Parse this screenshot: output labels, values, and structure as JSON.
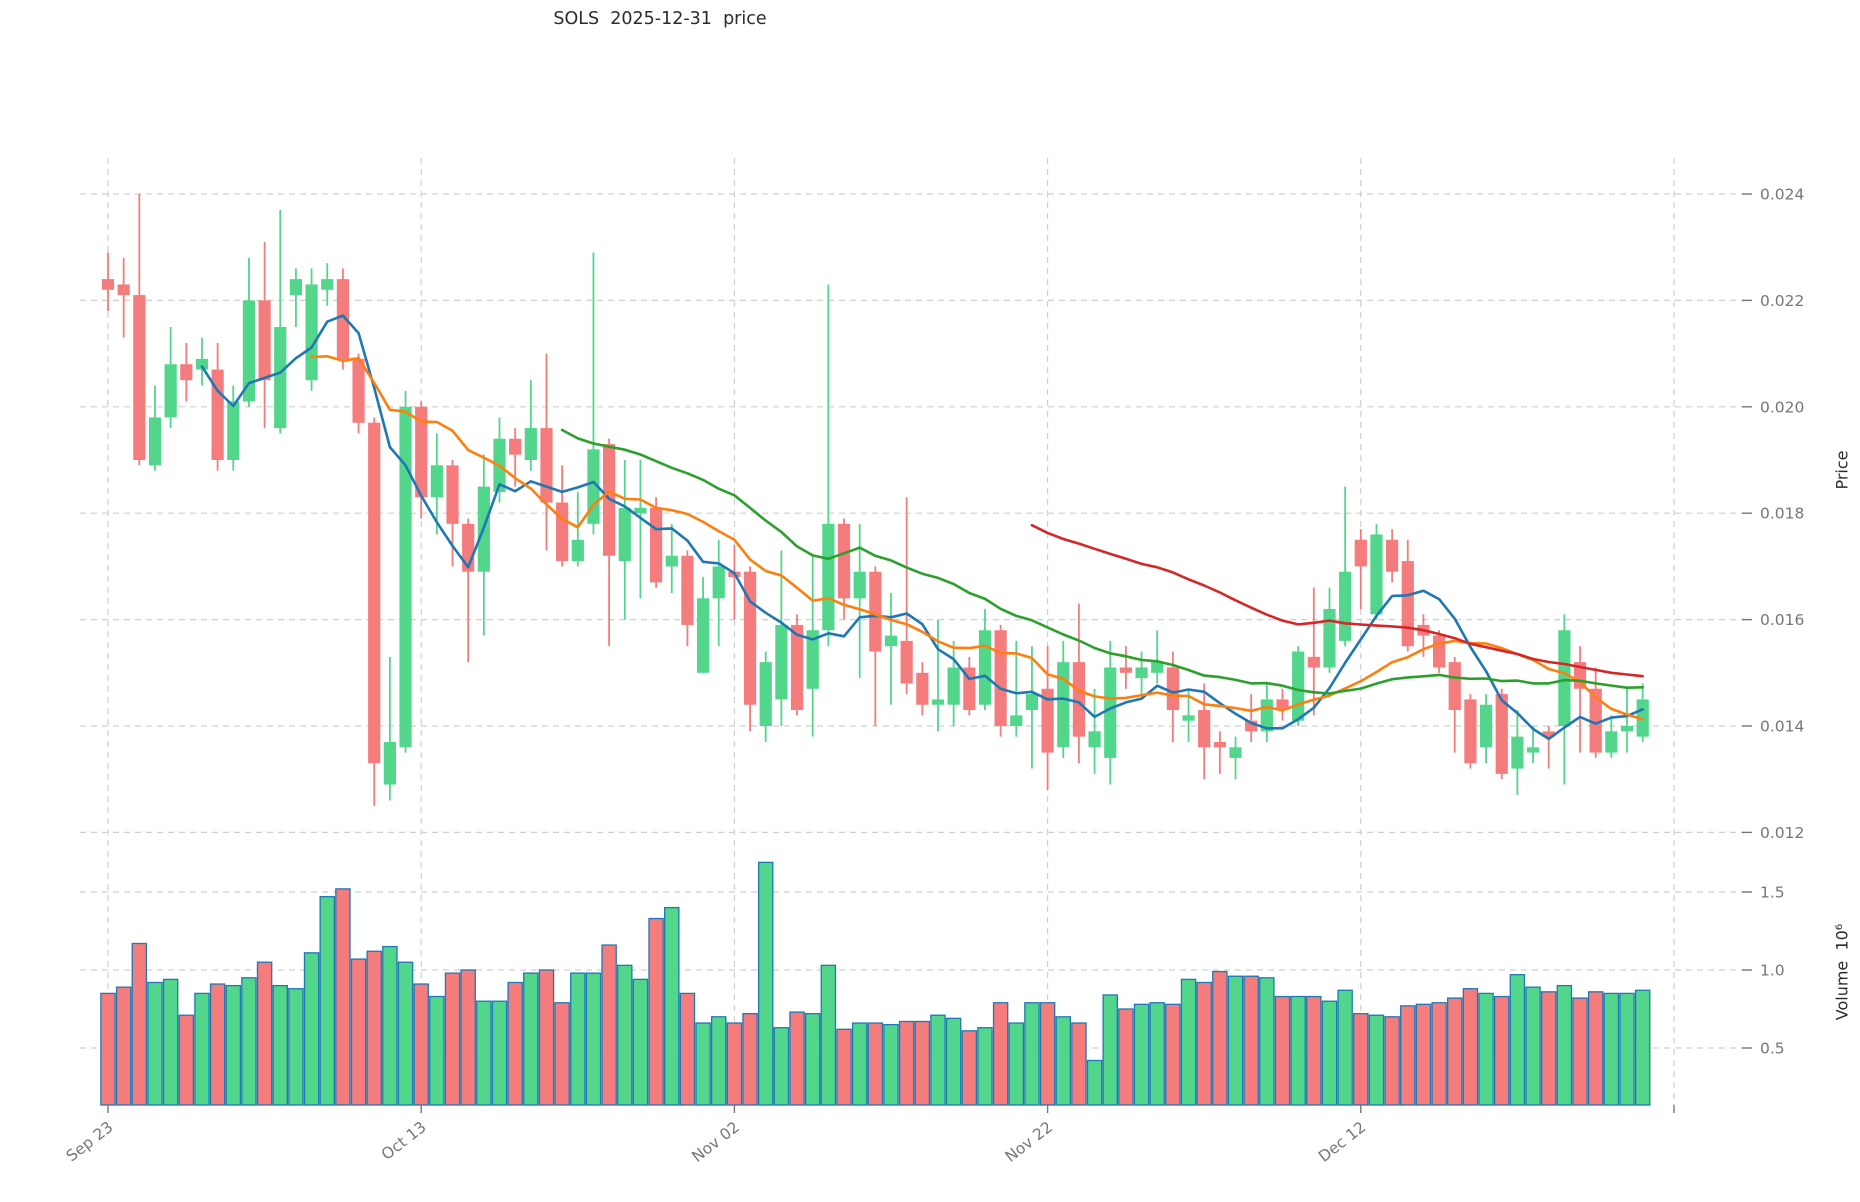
{
  "chart_data": {
    "type": "candlestick",
    "title": "SOLS  2025-12-31  price",
    "ylabel": "Price",
    "ylabel_volume": "Volume  10⁶",
    "legend_position": "none",
    "grid": "dashed",
    "price_ticks": [
      {
        "value": 0.012,
        "label": "0.012"
      },
      {
        "value": 0.014,
        "label": "0.014"
      },
      {
        "value": 0.016,
        "label": "0.016"
      },
      {
        "value": 0.018,
        "label": "0.018"
      },
      {
        "value": 0.02,
        "label": "0.020"
      },
      {
        "value": 0.022,
        "label": "0.022"
      },
      {
        "value": 0.024,
        "label": "0.024"
      }
    ],
    "volume_ticks": [
      {
        "value": 0.5,
        "label": "0.5"
      },
      {
        "value": 1.0,
        "label": "1.0"
      },
      {
        "value": 1.5,
        "label": "1.5"
      }
    ],
    "volume_unit": 1000000,
    "price_ylim": [
      0.0118,
      0.0247
    ],
    "volume_ylim": [
      0.13,
      1.78
    ],
    "x_gridline_indices": [
      0,
      20,
      40,
      60,
      80,
      100
    ],
    "x_ticks": [
      {
        "index": 0,
        "label": "Sep 23"
      },
      {
        "index": 20,
        "label": "Oct 13"
      },
      {
        "index": 40,
        "label": "Nov 02"
      },
      {
        "index": 60,
        "label": "Nov 22"
      },
      {
        "index": 80,
        "label": "Dec 12"
      }
    ],
    "moving_averages": [
      {
        "name": "mav-7",
        "window": 7,
        "color": "#1f77b4"
      },
      {
        "name": "mav-14",
        "window": 14,
        "color": "#ff7f0e"
      },
      {
        "name": "mav-30",
        "window": 30,
        "color": "#2ca02c"
      },
      {
        "name": "mav-60",
        "window": 60,
        "color": "#d62728"
      }
    ],
    "colors": {
      "up": "#52d68b",
      "down": "#f47c7c",
      "volume_edge": "#1f77b4",
      "grid": "#cfcfcf",
      "tick_text": "#767676",
      "title_text": "#2b2b2b"
    },
    "columns": [
      "date",
      "open",
      "high",
      "low",
      "close",
      "volume_millions"
    ],
    "candles": [
      [
        "2025-09-23",
        0.0224,
        0.0229,
        0.0218,
        0.0222,
        0.85
      ],
      [
        "2025-09-24",
        0.0223,
        0.0228,
        0.0213,
        0.0221,
        0.89
      ],
      [
        "2025-09-25",
        0.0221,
        0.024,
        0.0189,
        0.019,
        1.17
      ],
      [
        "2025-09-26",
        0.0189,
        0.0204,
        0.0188,
        0.0198,
        0.92
      ],
      [
        "2025-09-27",
        0.0198,
        0.0215,
        0.0196,
        0.0208,
        0.94
      ],
      [
        "2025-09-28",
        0.0208,
        0.0212,
        0.0201,
        0.0205,
        0.71
      ],
      [
        "2025-09-29",
        0.0207,
        0.0213,
        0.0204,
        0.0209,
        0.85
      ],
      [
        "2025-09-30",
        0.0207,
        0.0212,
        0.0188,
        0.019,
        0.91
      ],
      [
        "2025-10-01",
        0.019,
        0.0204,
        0.0188,
        0.0201,
        0.9
      ],
      [
        "2025-10-02",
        0.0201,
        0.0228,
        0.02,
        0.022,
        0.95
      ],
      [
        "2025-10-03",
        0.022,
        0.0231,
        0.0196,
        0.0205,
        1.05
      ],
      [
        "2025-10-04",
        0.0196,
        0.0237,
        0.0195,
        0.0215,
        0.9
      ],
      [
        "2025-10-05",
        0.0221,
        0.0226,
        0.0215,
        0.0224,
        0.88
      ],
      [
        "2025-10-06",
        0.0205,
        0.0226,
        0.0203,
        0.0223,
        1.11
      ],
      [
        "2025-10-07",
        0.0222,
        0.0227,
        0.0219,
        0.0224,
        1.47
      ],
      [
        "2025-10-08",
        0.0224,
        0.0226,
        0.0207,
        0.0209,
        1.52
      ],
      [
        "2025-10-09",
        0.0209,
        0.021,
        0.0195,
        0.0197,
        1.07
      ],
      [
        "2025-10-10",
        0.0197,
        0.0198,
        0.0125,
        0.0133,
        1.12
      ],
      [
        "2025-10-11",
        0.0129,
        0.0153,
        0.0126,
        0.0137,
        1.15
      ],
      [
        "2025-10-12",
        0.0136,
        0.0203,
        0.0135,
        0.02,
        1.05
      ],
      [
        "2025-10-13",
        0.02,
        0.0201,
        0.0179,
        0.0183,
        0.91
      ],
      [
        "2025-10-14",
        0.0183,
        0.0195,
        0.0176,
        0.0189,
        0.83
      ],
      [
        "2025-10-15",
        0.0189,
        0.019,
        0.017,
        0.0178,
        0.98
      ],
      [
        "2025-10-16",
        0.0178,
        0.0179,
        0.0152,
        0.0169,
        1.0
      ],
      [
        "2025-10-17",
        0.0169,
        0.0191,
        0.0157,
        0.0185,
        0.8
      ],
      [
        "2025-10-18",
        0.0184,
        0.0198,
        0.0182,
        0.0194,
        0.8
      ],
      [
        "2025-10-19",
        0.0194,
        0.0196,
        0.0185,
        0.0191,
        0.92
      ],
      [
        "2025-10-20",
        0.019,
        0.0205,
        0.0188,
        0.0196,
        0.98
      ],
      [
        "2025-10-21",
        0.0196,
        0.021,
        0.0173,
        0.0182,
        1.0
      ],
      [
        "2025-10-22",
        0.0182,
        0.0189,
        0.017,
        0.0171,
        0.79
      ],
      [
        "2025-10-23",
        0.0171,
        0.0184,
        0.017,
        0.0175,
        0.98
      ],
      [
        "2025-10-24",
        0.0178,
        0.0229,
        0.0176,
        0.0192,
        0.98
      ],
      [
        "2025-10-25",
        0.0193,
        0.0194,
        0.0155,
        0.0172,
        1.16
      ],
      [
        "2025-10-26",
        0.0171,
        0.019,
        0.016,
        0.0181,
        1.03
      ],
      [
        "2025-10-27",
        0.018,
        0.019,
        0.0164,
        0.0181,
        0.94
      ],
      [
        "2025-10-28",
        0.0181,
        0.0183,
        0.0166,
        0.0167,
        1.33
      ],
      [
        "2025-10-29",
        0.017,
        0.0178,
        0.0165,
        0.0172,
        1.4
      ],
      [
        "2025-10-30",
        0.0172,
        0.0173,
        0.0155,
        0.0159,
        0.85
      ],
      [
        "2025-10-31",
        0.015,
        0.0168,
        0.015,
        0.0164,
        0.66
      ],
      [
        "2025-11-01",
        0.0164,
        0.0175,
        0.0155,
        0.017,
        0.7
      ],
      [
        "2025-11-02",
        0.0169,
        0.0174,
        0.016,
        0.0168,
        0.66
      ],
      [
        "2025-11-03",
        0.0169,
        0.017,
        0.0139,
        0.0144,
        0.72
      ],
      [
        "2025-11-04",
        0.014,
        0.0154,
        0.0137,
        0.0152,
        1.69
      ],
      [
        "2025-11-05",
        0.0145,
        0.0173,
        0.014,
        0.0159,
        0.63
      ],
      [
        "2025-11-06",
        0.0159,
        0.0161,
        0.0142,
        0.0143,
        0.73
      ],
      [
        "2025-11-07",
        0.0147,
        0.0172,
        0.0138,
        0.0158,
        0.72
      ],
      [
        "2025-11-08",
        0.0158,
        0.0223,
        0.0155,
        0.0178,
        1.03
      ],
      [
        "2025-11-09",
        0.0178,
        0.0179,
        0.016,
        0.0164,
        0.62
      ],
      [
        "2025-11-10",
        0.0164,
        0.0178,
        0.0149,
        0.0169,
        0.66
      ],
      [
        "2025-11-11",
        0.0169,
        0.017,
        0.014,
        0.0154,
        0.66
      ],
      [
        "2025-11-12",
        0.0155,
        0.0165,
        0.0144,
        0.0157,
        0.65
      ],
      [
        "2025-11-13",
        0.0156,
        0.0183,
        0.0146,
        0.0148,
        0.67
      ],
      [
        "2025-11-14",
        0.015,
        0.0152,
        0.0142,
        0.0144,
        0.67
      ],
      [
        "2025-11-15",
        0.0144,
        0.016,
        0.0139,
        0.0145,
        0.71
      ],
      [
        "2025-11-16",
        0.0144,
        0.0156,
        0.014,
        0.0151,
        0.69
      ],
      [
        "2025-11-17",
        0.0151,
        0.0153,
        0.0142,
        0.0143,
        0.61
      ],
      [
        "2025-11-18",
        0.0144,
        0.0162,
        0.0143,
        0.0158,
        0.63
      ],
      [
        "2025-11-19",
        0.0158,
        0.0159,
        0.0138,
        0.014,
        0.79
      ],
      [
        "2025-11-20",
        0.014,
        0.0156,
        0.0138,
        0.0142,
        0.66
      ],
      [
        "2025-11-21",
        0.0143,
        0.0155,
        0.0132,
        0.0146,
        0.79
      ],
      [
        "2025-11-22",
        0.0147,
        0.0155,
        0.0128,
        0.0135,
        0.79
      ],
      [
        "2025-11-23",
        0.0136,
        0.0156,
        0.0134,
        0.0152,
        0.7
      ],
      [
        "2025-11-24",
        0.0152,
        0.0163,
        0.0133,
        0.0138,
        0.66
      ],
      [
        "2025-11-25",
        0.0136,
        0.0147,
        0.0131,
        0.0139,
        0.42
      ],
      [
        "2025-11-26",
        0.0134,
        0.0156,
        0.0129,
        0.0151,
        0.84
      ],
      [
        "2025-11-27",
        0.0151,
        0.0155,
        0.0147,
        0.015,
        0.75
      ],
      [
        "2025-11-28",
        0.0149,
        0.0154,
        0.0146,
        0.0151,
        0.78
      ],
      [
        "2025-11-29",
        0.015,
        0.0158,
        0.0148,
        0.0152,
        0.79
      ],
      [
        "2025-11-30",
        0.0151,
        0.0154,
        0.0137,
        0.0143,
        0.78
      ],
      [
        "2025-12-01",
        0.0141,
        0.0147,
        0.0137,
        0.0142,
        0.94
      ],
      [
        "2025-12-02",
        0.0143,
        0.0148,
        0.013,
        0.0136,
        0.92
      ],
      [
        "2025-12-03",
        0.0137,
        0.0139,
        0.0131,
        0.0136,
        0.99
      ],
      [
        "2025-12-04",
        0.0134,
        0.0138,
        0.013,
        0.0136,
        0.96
      ],
      [
        "2025-12-05",
        0.0141,
        0.0146,
        0.0137,
        0.0139,
        0.96
      ],
      [
        "2025-12-06",
        0.0139,
        0.0148,
        0.0137,
        0.0145,
        0.95
      ],
      [
        "2025-12-07",
        0.0145,
        0.0147,
        0.0141,
        0.0143,
        0.83
      ],
      [
        "2025-12-08",
        0.0141,
        0.0155,
        0.014,
        0.0154,
        0.83
      ],
      [
        "2025-12-09",
        0.0153,
        0.0166,
        0.0142,
        0.0151,
        0.83
      ],
      [
        "2025-12-10",
        0.0151,
        0.0166,
        0.015,
        0.0162,
        0.8
      ],
      [
        "2025-12-11",
        0.0156,
        0.0185,
        0.0155,
        0.0169,
        0.87
      ],
      [
        "2025-12-12",
        0.0175,
        0.0177,
        0.0162,
        0.017,
        0.72
      ],
      [
        "2025-12-13",
        0.0161,
        0.0178,
        0.016,
        0.0176,
        0.71
      ],
      [
        "2025-12-14",
        0.0175,
        0.0177,
        0.0167,
        0.0169,
        0.7
      ],
      [
        "2025-12-15",
        0.0171,
        0.0175,
        0.0154,
        0.0155,
        0.77
      ],
      [
        "2025-12-16",
        0.0159,
        0.0161,
        0.0153,
        0.0157,
        0.78
      ],
      [
        "2025-12-17",
        0.0157,
        0.0158,
        0.015,
        0.0151,
        0.79
      ],
      [
        "2025-12-18",
        0.0152,
        0.0153,
        0.0135,
        0.0143,
        0.82
      ],
      [
        "2025-12-19",
        0.0145,
        0.0146,
        0.0132,
        0.0133,
        0.88
      ],
      [
        "2025-12-20",
        0.0136,
        0.0146,
        0.0133,
        0.0144,
        0.85
      ],
      [
        "2025-12-21",
        0.0146,
        0.0147,
        0.013,
        0.0131,
        0.83
      ],
      [
        "2025-12-22",
        0.0132,
        0.0143,
        0.0127,
        0.0138,
        0.97
      ],
      [
        "2025-12-23",
        0.0135,
        0.014,
        0.0133,
        0.0136,
        0.89
      ],
      [
        "2025-12-24",
        0.0139,
        0.014,
        0.0132,
        0.0138,
        0.86
      ],
      [
        "2025-12-25",
        0.014,
        0.0161,
        0.0129,
        0.0158,
        0.9
      ],
      [
        "2025-12-26",
        0.0152,
        0.0155,
        0.0135,
        0.0147,
        0.82
      ],
      [
        "2025-12-27",
        0.0147,
        0.0151,
        0.0134,
        0.0135,
        0.86
      ],
      [
        "2025-12-28",
        0.0135,
        0.0142,
        0.0134,
        0.0139,
        0.85
      ],
      [
        "2025-12-29",
        0.0139,
        0.0147,
        0.0135,
        0.014,
        0.85
      ],
      [
        "2025-12-30",
        0.0138,
        0.0148,
        0.0137,
        0.0145,
        0.87
      ]
    ]
  }
}
